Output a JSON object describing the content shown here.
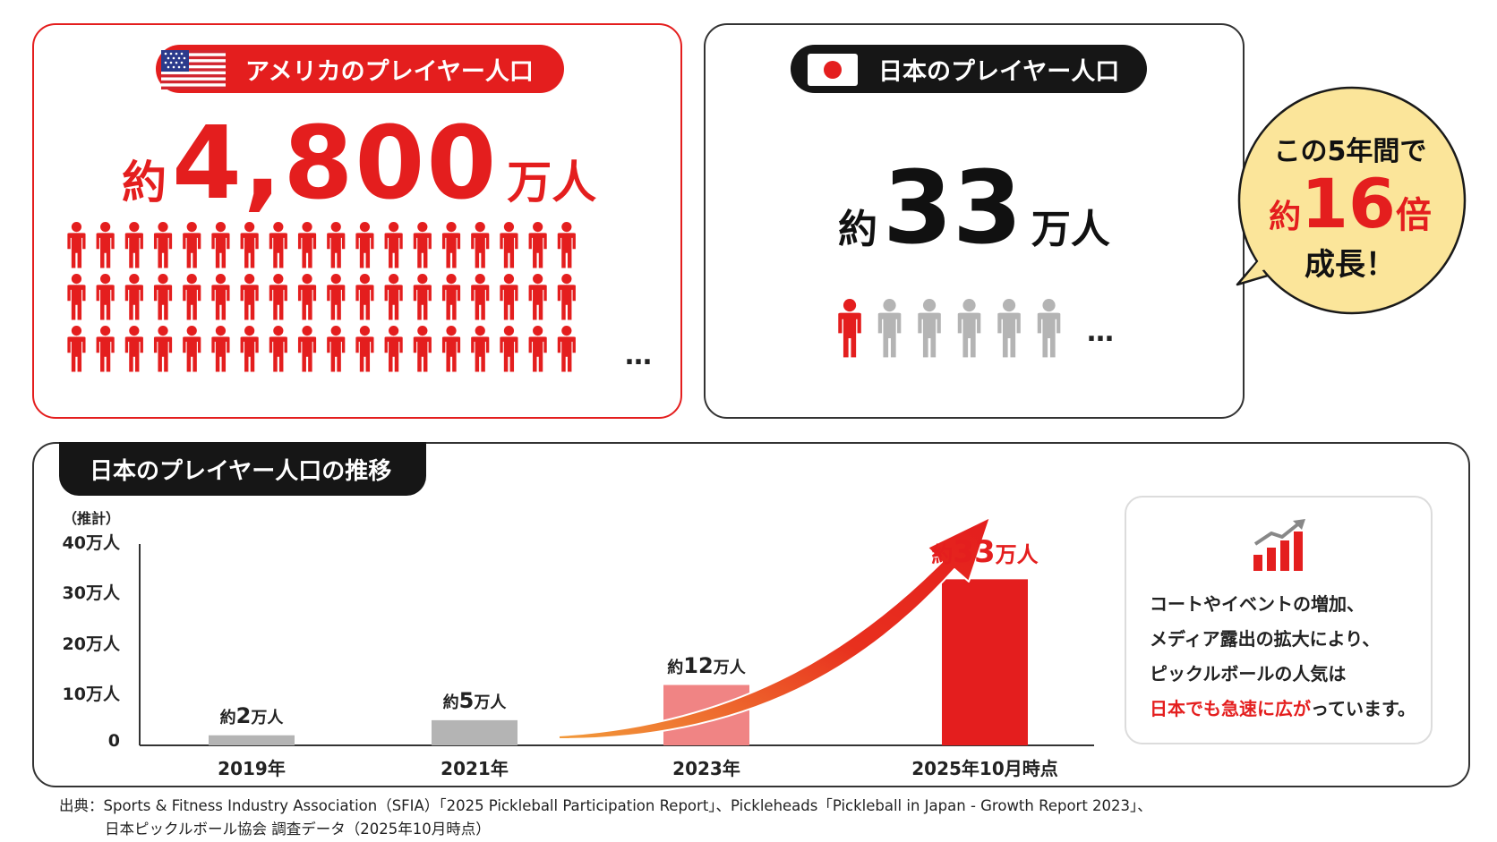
{
  "us_card": {
    "title": "アメリカのプレイヤー人口",
    "prefix": "約",
    "number": "4,800",
    "unit": "万人",
    "ellipsis": "…"
  },
  "jp_card": {
    "title": "日本のプレイヤー人口",
    "prefix": "約",
    "number": "33",
    "unit": "万人",
    "ellipsis": "…"
  },
  "bubble": {
    "line1": "この5年間で",
    "prefix": "約",
    "number": "16",
    "unit": "倍",
    "line3": "成長！"
  },
  "colors": {
    "red": "#e41e1e",
    "light_red": "#f08484",
    "gray": "#b4b4b4",
    "dark": "#161616",
    "bubble_fill": "#fbe59a"
  },
  "icons": [
    "us-flag-icon",
    "japan-flag-icon",
    "person-icon",
    "growth-chart-icon",
    "growth-arrow-icon"
  ],
  "chart_data": {
    "type": "bar",
    "title": "日本のプレイヤー人口の推移",
    "note": "（推計）",
    "categories": [
      "2019年",
      "2021年",
      "2023年",
      "2025年10月時点"
    ],
    "values": [
      2,
      5,
      12,
      33
    ],
    "value_labels": [
      {
        "prefix": "約",
        "number": "2",
        "unit": "万人"
      },
      {
        "prefix": "約",
        "number": "5",
        "unit": "万人"
      },
      {
        "prefix": "約",
        "number": "12",
        "unit": "万人"
      },
      {
        "prefix": "約",
        "number": "33",
        "unit": "万人"
      }
    ],
    "yticks": [
      0,
      10,
      20,
      30,
      40
    ],
    "ytick_labels": [
      "0",
      "10万人",
      "20万人",
      "30万人",
      "40万人"
    ],
    "ylim": [
      0,
      40
    ],
    "bar_colors": [
      "#b4b4b4",
      "#b4b4b4",
      "#f08484",
      "#e41e1e"
    ]
  },
  "info": {
    "line1": "コートやイベントの増加、",
    "line2": "メディア露出の拡大により、",
    "line3": "ピックルボールの人気は",
    "line4_red": "日本でも急速に広が",
    "line4_rest": "っています。"
  },
  "source": {
    "line1": "出典：Sports & Fitness Industry Association（SFIA）「2025 Pickleball Participation Report」、Pickleheads「Pickleball in Japan - Growth Report 2023」、",
    "line2": "日本ピックルボール協会 調査データ（2025年10月時点）"
  }
}
